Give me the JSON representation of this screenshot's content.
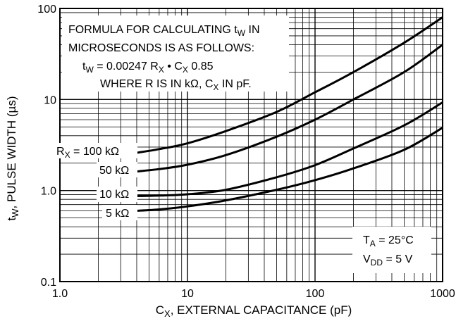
{
  "chart_data": {
    "type": "line",
    "xscale": "log",
    "yscale": "log",
    "xlim": [
      1,
      1000
    ],
    "ylim": [
      0.1,
      100
    ],
    "grid": true,
    "x_ticks": [
      "1.0",
      "10",
      "100",
      "1000"
    ],
    "y_ticks": [
      "0.1",
      "1.0",
      "10",
      "100"
    ],
    "xlabel": {
      "main": "C",
      "sub": "X",
      "rest": ", EXTERNAL CAPACITANCE (pF)"
    },
    "ylabel": {
      "main": "t",
      "sub": "W",
      "rest": ", PULSE WIDTH (µs)"
    },
    "annotation": {
      "line1": {
        "text": "FORMULA FOR CALCULATING t",
        "sub": "W",
        "after": " IN"
      },
      "line2": "MICROSECONDS IS AS FOLLOWS:",
      "line3": {
        "p1": "t",
        "s1": "W",
        "p2": " = 0.00247 R",
        "s2": "X",
        "p3": " • C",
        "s3": "X",
        "p4": " 0.85"
      },
      "line4": {
        "p1": "WHERE R IS IN kΩ, C",
        "s1": "X",
        "p2": " IN pF."
      }
    },
    "conditions": {
      "ta": {
        "main": "T",
        "sub": "A",
        "rest": " = 25°C"
      },
      "vdd": {
        "main": "V",
        "sub": "DD",
        "rest": " = 5 V"
      }
    },
    "series_labels": {
      "first_prefix": "R",
      "first_sub": "X",
      "first_rest": " = 100 kΩ",
      "others": [
        "50 kΩ",
        "10 kΩ",
        "5 kΩ"
      ]
    },
    "series": [
      {
        "name": "100 kΩ",
        "x": [
          4,
          6,
          10,
          20,
          50,
          100,
          200,
          500,
          1000
        ],
        "y": [
          2.6,
          2.85,
          3.3,
          4.5,
          7.3,
          12,
          20,
          42,
          80
        ]
      },
      {
        "name": "50 kΩ",
        "x": [
          4,
          6,
          10,
          20,
          50,
          100,
          200,
          500,
          1000
        ],
        "y": [
          1.62,
          1.72,
          1.92,
          2.45,
          3.9,
          6,
          10,
          20,
          40
        ]
      },
      {
        "name": "10 kΩ",
        "x": [
          4,
          6,
          10,
          20,
          50,
          100,
          200,
          500,
          1000
        ],
        "y": [
          0.87,
          0.88,
          0.91,
          1.02,
          1.4,
          1.9,
          2.9,
          5.2,
          9.3
        ]
      },
      {
        "name": "5 kΩ",
        "x": [
          4,
          6,
          10,
          20,
          50,
          100,
          200,
          500,
          1000
        ],
        "y": [
          0.6,
          0.62,
          0.67,
          0.78,
          1.02,
          1.3,
          1.75,
          2.8,
          4.9
        ]
      }
    ]
  }
}
